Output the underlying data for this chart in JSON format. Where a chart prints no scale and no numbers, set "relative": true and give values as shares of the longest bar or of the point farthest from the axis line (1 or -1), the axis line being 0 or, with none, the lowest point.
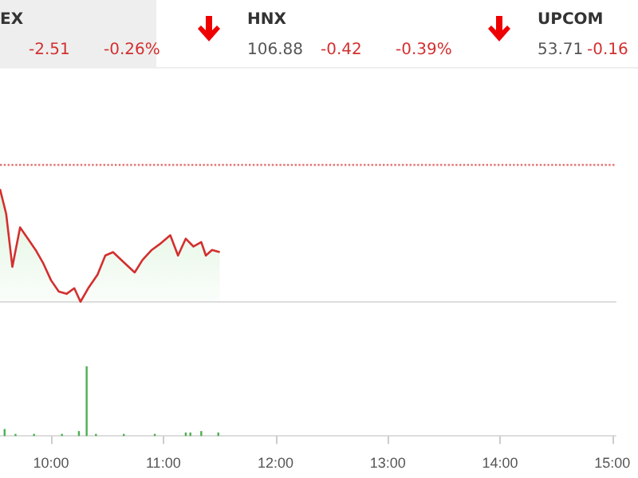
{
  "chart_data": [
    {
      "type": "other",
      "annotations": [
        "EX",
        "-2.51",
        "-0.26%",
        "HNX",
        "106.88",
        "-0.42",
        "-0.39%",
        "UPCOM",
        "53.71",
        "-0.16"
      ]
    },
    {
      "type": "area",
      "relative": true,
      "tick_labels": false,
      "xlim": [
        9.545,
        15.03
      ],
      "series": [
        {
          "color": "#d32f2f",
          "x": [
            9.545,
            9.6,
            9.655,
            9.724,
            9.793,
            9.862,
            9.931,
            10,
            10.069,
            10.138,
            10.207,
            10.262,
            10.331,
            10.414,
            10.483,
            10.552,
            10.648,
            10.745,
            10.814,
            10.897,
            10.966,
            11.062,
            11.131,
            11.2,
            11.269,
            11.338,
            11.379,
            11.434,
            11.503
          ],
          "values": [
            1,
            0.78,
            0.31,
            0.66,
            0.56,
            0.46,
            0.34,
            0.19,
            0.09,
            0.07,
            0.12,
            0,
            0.12,
            0.24,
            0.41,
            0.44,
            0.35,
            0.26,
            0.37,
            0.46,
            0.51,
            0.59,
            0.41,
            0.56,
            0.49,
            0.53,
            0.41,
            0.46,
            0.44
          ]
        }
      ],
      "ref_lines": [
        {
          "axis": "y",
          "value": 1.22,
          "color": "#e57373",
          "line_style": "dotted"
        }
      ]
    },
    {
      "type": "bar",
      "relative": true,
      "tick_labels": "x",
      "xlim": [
        9.545,
        15.03
      ],
      "xticks": [
        {
          "value": 10,
          "label": "10:00"
        },
        {
          "value": 11,
          "label": "11:00"
        },
        {
          "value": 12,
          "label": "12:00"
        },
        {
          "value": 13,
          "label": "13:00"
        },
        {
          "value": 14,
          "label": "14:00"
        },
        {
          "value": 15,
          "label": "15:00"
        }
      ],
      "series": [
        {
          "color": "#4caf50",
          "x": [
            9.586,
            9.683,
            9.848,
            10.097,
            10.248,
            10.317,
            10.4,
            10.648,
            10.924,
            11.2,
            11.241,
            11.338,
            11.49
          ],
          "values": [
            0.1,
            0.03,
            0.03,
            0.03,
            0.07,
            1,
            0.03,
            0.03,
            0.03,
            0.05,
            0.05,
            0.07,
            0.05
          ]
        }
      ]
    }
  ]
}
